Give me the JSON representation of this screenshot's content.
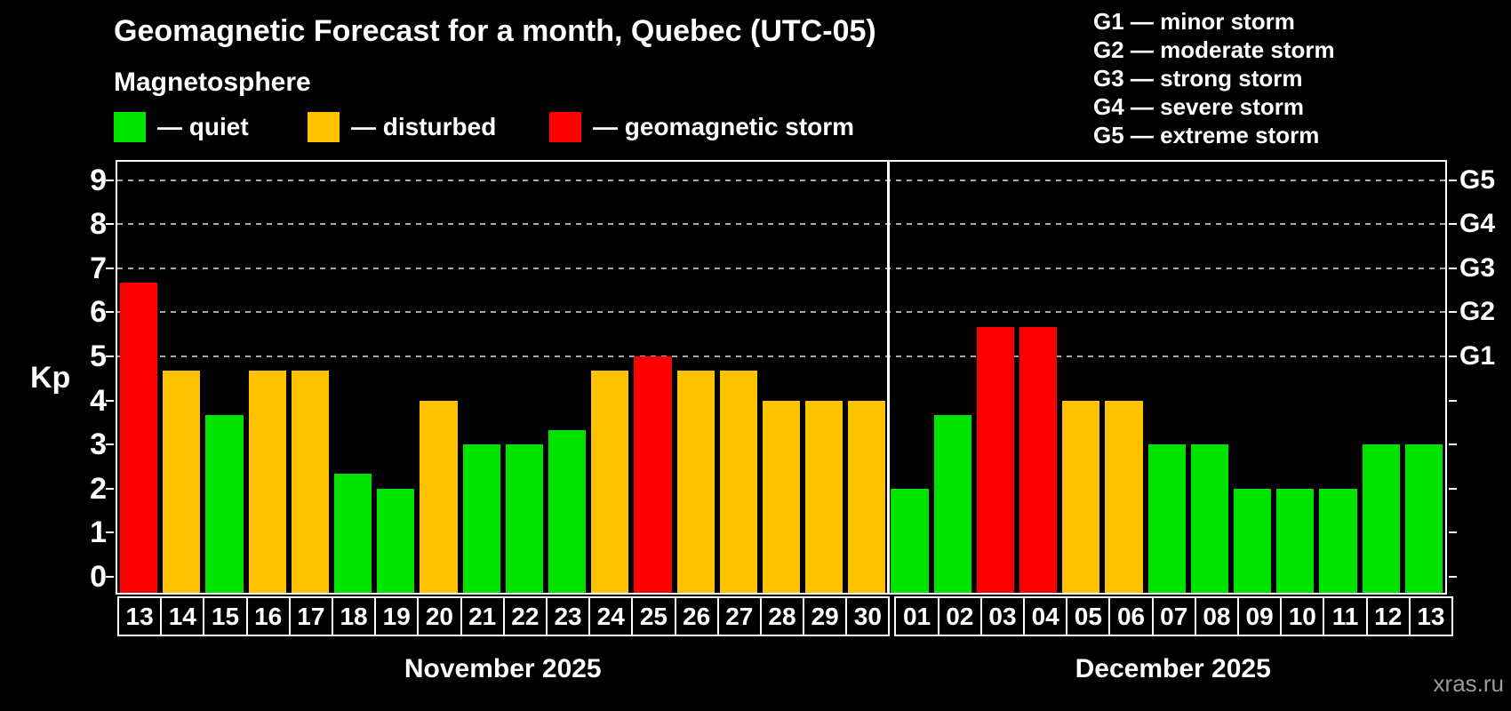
{
  "title": "Geomagnetic Forecast for a month, Quebec (UTC-05)",
  "subtitle": "Magnetosphere",
  "legend": [
    {
      "key": "quiet",
      "label": "— quiet",
      "color": "#00e300"
    },
    {
      "key": "disturbed",
      "label": "— disturbed",
      "color": "#ffc200"
    },
    {
      "key": "storm",
      "label": "— geomagnetic storm",
      "color": "#ff0000"
    }
  ],
  "g_legend": [
    "G1 — minor storm",
    "G2 — moderate storm",
    "G3 — strong storm",
    "G4 — severe storm",
    "G5 — extreme storm"
  ],
  "watermark": "xras.ru",
  "chart_data": {
    "type": "bar",
    "title": "Geomagnetic Forecast for a month, Quebec (UTC-05)",
    "ylabel": "Kp",
    "ylim": [
      0,
      9
    ],
    "yticks": [
      0,
      1,
      2,
      3,
      4,
      5,
      6,
      7,
      8,
      9
    ],
    "gridline_levels": [
      5,
      6,
      7,
      8,
      9
    ],
    "grid": "dashed horizontal at storm levels only",
    "legend_position": "top",
    "right_axis": [
      {
        "kp": 5,
        "label": "G1"
      },
      {
        "kp": 6,
        "label": "G2"
      },
      {
        "kp": 7,
        "label": "G3"
      },
      {
        "kp": 8,
        "label": "G4"
      },
      {
        "kp": 9,
        "label": "G5"
      }
    ],
    "colors": {
      "quiet": "#00e300",
      "disturbed": "#ffc200",
      "storm": "#ff0000"
    },
    "months": [
      {
        "label": "November 2025",
        "days": [
          {
            "day": "13",
            "kp": 6.67,
            "state": "storm"
          },
          {
            "day": "14",
            "kp": 4.67,
            "state": "disturbed"
          },
          {
            "day": "15",
            "kp": 3.67,
            "state": "quiet"
          },
          {
            "day": "16",
            "kp": 4.67,
            "state": "disturbed"
          },
          {
            "day": "17",
            "kp": 4.67,
            "state": "disturbed"
          },
          {
            "day": "18",
            "kp": 2.33,
            "state": "quiet"
          },
          {
            "day": "19",
            "kp": 2,
            "state": "quiet"
          },
          {
            "day": "20",
            "kp": 4,
            "state": "disturbed"
          },
          {
            "day": "21",
            "kp": 3,
            "state": "quiet"
          },
          {
            "day": "22",
            "kp": 3,
            "state": "quiet"
          },
          {
            "day": "23",
            "kp": 3.33,
            "state": "quiet"
          },
          {
            "day": "24",
            "kp": 4.67,
            "state": "disturbed"
          },
          {
            "day": "25",
            "kp": 5,
            "state": "storm"
          },
          {
            "day": "26",
            "kp": 4.67,
            "state": "disturbed"
          },
          {
            "day": "27",
            "kp": 4.67,
            "state": "disturbed"
          },
          {
            "day": "28",
            "kp": 4,
            "state": "disturbed"
          },
          {
            "day": "29",
            "kp": 4,
            "state": "disturbed"
          },
          {
            "day": "30",
            "kp": 4,
            "state": "disturbed"
          }
        ]
      },
      {
        "label": "December 2025",
        "days": [
          {
            "day": "01",
            "kp": 2,
            "state": "quiet"
          },
          {
            "day": "02",
            "kp": 3.67,
            "state": "quiet"
          },
          {
            "day": "03",
            "kp": 5.67,
            "state": "storm"
          },
          {
            "day": "04",
            "kp": 5.67,
            "state": "storm"
          },
          {
            "day": "05",
            "kp": 4,
            "state": "disturbed"
          },
          {
            "day": "06",
            "kp": 4,
            "state": "disturbed"
          },
          {
            "day": "07",
            "kp": 3,
            "state": "quiet"
          },
          {
            "day": "08",
            "kp": 3,
            "state": "quiet"
          },
          {
            "day": "09",
            "kp": 2,
            "state": "quiet"
          },
          {
            "day": "10",
            "kp": 2,
            "state": "quiet"
          },
          {
            "day": "11",
            "kp": 2,
            "state": "quiet"
          },
          {
            "day": "12",
            "kp": 3,
            "state": "quiet"
          },
          {
            "day": "13",
            "kp": 3,
            "state": "quiet"
          }
        ]
      }
    ]
  }
}
